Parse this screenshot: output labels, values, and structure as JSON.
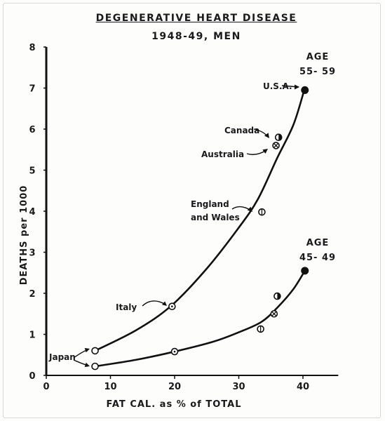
{
  "chart_data": {
    "type": "line",
    "title": "DEGENERATIVE HEART DISEASE",
    "subtitle": "1948-49, MEN",
    "xlabel": "FAT CAL. as % of TOTAL",
    "ylabel": "DEATHS per 1000",
    "xlim": [
      0,
      45
    ],
    "ylim": [
      0,
      8
    ],
    "xticks": [
      "0",
      "10",
      "20",
      "30",
      "40"
    ],
    "yticks": [
      "0",
      "1",
      "2",
      "3",
      "4",
      "5",
      "6",
      "7",
      "8"
    ],
    "xtick_values": [
      0,
      10,
      20,
      30,
      40
    ],
    "ytick_values": [
      0,
      1,
      2,
      3,
      4,
      5,
      6,
      7,
      8
    ],
    "series": [
      {
        "name": "AGE 55-59",
        "label_lines": [
          "AGE",
          "55- 59"
        ],
        "curve": [
          [
            7.6,
            0.6
          ],
          [
            14,
            1.1
          ],
          [
            19.5,
            1.7
          ],
          [
            25,
            2.6
          ],
          [
            30,
            3.6
          ],
          [
            33,
            4.3
          ],
          [
            36,
            5.3
          ],
          [
            38.5,
            6.1
          ],
          [
            40.2,
            6.95
          ]
        ],
        "points": [
          {
            "label": "Japan",
            "x": 7.6,
            "y": 0.6
          },
          {
            "label": "Italy",
            "x": 19.6,
            "y": 1.68
          },
          {
            "label": "England and Wales",
            "x": 33.6,
            "y": 3.98
          },
          {
            "label": "Australia",
            "x": 35.8,
            "y": 5.6
          },
          {
            "label": "Canada",
            "x": 36.2,
            "y": 5.8
          },
          {
            "label": "U.S.A.",
            "x": 40.3,
            "y": 6.95
          }
        ]
      },
      {
        "name": "AGE 45-49",
        "label_lines": [
          "AGE",
          "45- 49"
        ],
        "curve": [
          [
            7.6,
            0.22
          ],
          [
            14,
            0.38
          ],
          [
            20,
            0.58
          ],
          [
            26,
            0.82
          ],
          [
            30,
            1.05
          ],
          [
            33.5,
            1.3
          ],
          [
            36,
            1.65
          ],
          [
            38.5,
            2.1
          ],
          [
            40.3,
            2.55
          ]
        ],
        "points": [
          {
            "label": "Japan",
            "x": 7.6,
            "y": 0.22
          },
          {
            "label": "Italy",
            "x": 20,
            "y": 0.58
          },
          {
            "label": "England and Wales",
            "x": 33.4,
            "y": 1.13
          },
          {
            "label": "Australia",
            "x": 35.5,
            "y": 1.5
          },
          {
            "label": "Canada",
            "x": 36,
            "y": 1.93
          },
          {
            "label": "U.S.A.",
            "x": 40.3,
            "y": 2.55
          }
        ]
      }
    ],
    "annotations": [
      {
        "text_lines": [
          "U.S.A."
        ]
      },
      {
        "text_lines": [
          "Canada"
        ]
      },
      {
        "text_lines": [
          "Australia"
        ]
      },
      {
        "text_lines": [
          "England",
          "and Wales"
        ]
      },
      {
        "text_lines": [
          "Italy"
        ]
      },
      {
        "text_lines": [
          "Japan"
        ]
      }
    ]
  }
}
